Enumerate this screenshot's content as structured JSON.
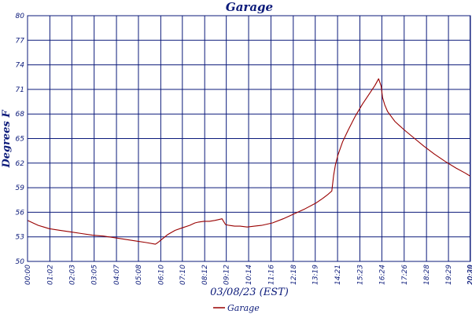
{
  "chart_data": {
    "type": "line",
    "title": "Garage",
    "xlabel": "03/08/23 (EST)",
    "ylabel": "Degrees F",
    "y_ticks": [
      "50",
      "53",
      "56",
      "59",
      "62",
      "65",
      "68",
      "71",
      "74",
      "77",
      "80"
    ],
    "ylim": [
      50,
      80
    ],
    "x_ticks": [
      "00:00",
      "01:02",
      "02:03",
      "03:05",
      "04:07",
      "05:08",
      "06:10",
      "07:10",
      "08:12",
      "09:12",
      "10:14",
      "11:16",
      "12:18",
      "13:19",
      "14:21",
      "15:23",
      "16:24",
      "17:26",
      "18:28",
      "19:29",
      "20:29",
      "20:30"
    ],
    "x_tick_minutes": [
      0,
      62,
      123,
      185,
      247,
      308,
      370,
      430,
      492,
      552,
      614,
      676,
      738,
      799,
      861,
      923,
      984,
      1046,
      1108,
      1169,
      1229,
      1230
    ],
    "xlim": [
      0,
      1230
    ],
    "grid": true,
    "legend_position": "bottom-center",
    "series": [
      {
        "name": "Garage",
        "color": "#990000",
        "x": [
          0,
          15,
          30,
          45,
          60,
          90,
          120,
          150,
          180,
          210,
          240,
          270,
          300,
          330,
          355,
          362,
          370,
          390,
          410,
          430,
          450,
          465,
          475,
          490,
          505,
          520,
          530,
          540,
          550,
          560,
          575,
          590,
          610,
          630,
          650,
          680,
          710,
          740,
          770,
          800,
          820,
          835,
          845,
          850,
          855,
          862,
          875,
          890,
          910,
          930,
          950,
          965,
          975,
          982,
          986,
          992,
          1000,
          1020,
          1045,
          1075,
          1100,
          1130,
          1160,
          1190,
          1215,
          1230
        ],
        "values": [
          55.0,
          54.7,
          54.4,
          54.2,
          54.0,
          53.8,
          53.6,
          53.4,
          53.2,
          53.1,
          52.9,
          52.7,
          52.5,
          52.3,
          52.1,
          52.3,
          52.6,
          53.3,
          53.8,
          54.1,
          54.4,
          54.7,
          54.8,
          54.9,
          54.9,
          55.0,
          55.1,
          55.2,
          54.5,
          54.4,
          54.3,
          54.3,
          54.2,
          54.3,
          54.4,
          54.7,
          55.2,
          55.8,
          56.4,
          57.1,
          57.7,
          58.2,
          58.6,
          60.5,
          61.8,
          63.0,
          64.6,
          66.0,
          67.7,
          69.2,
          70.5,
          71.5,
          72.3,
          71.4,
          70.0,
          69.1,
          68.3,
          67.1,
          66.1,
          65.0,
          64.1,
          63.1,
          62.2,
          61.4,
          60.8,
          60.4
        ]
      }
    ]
  }
}
